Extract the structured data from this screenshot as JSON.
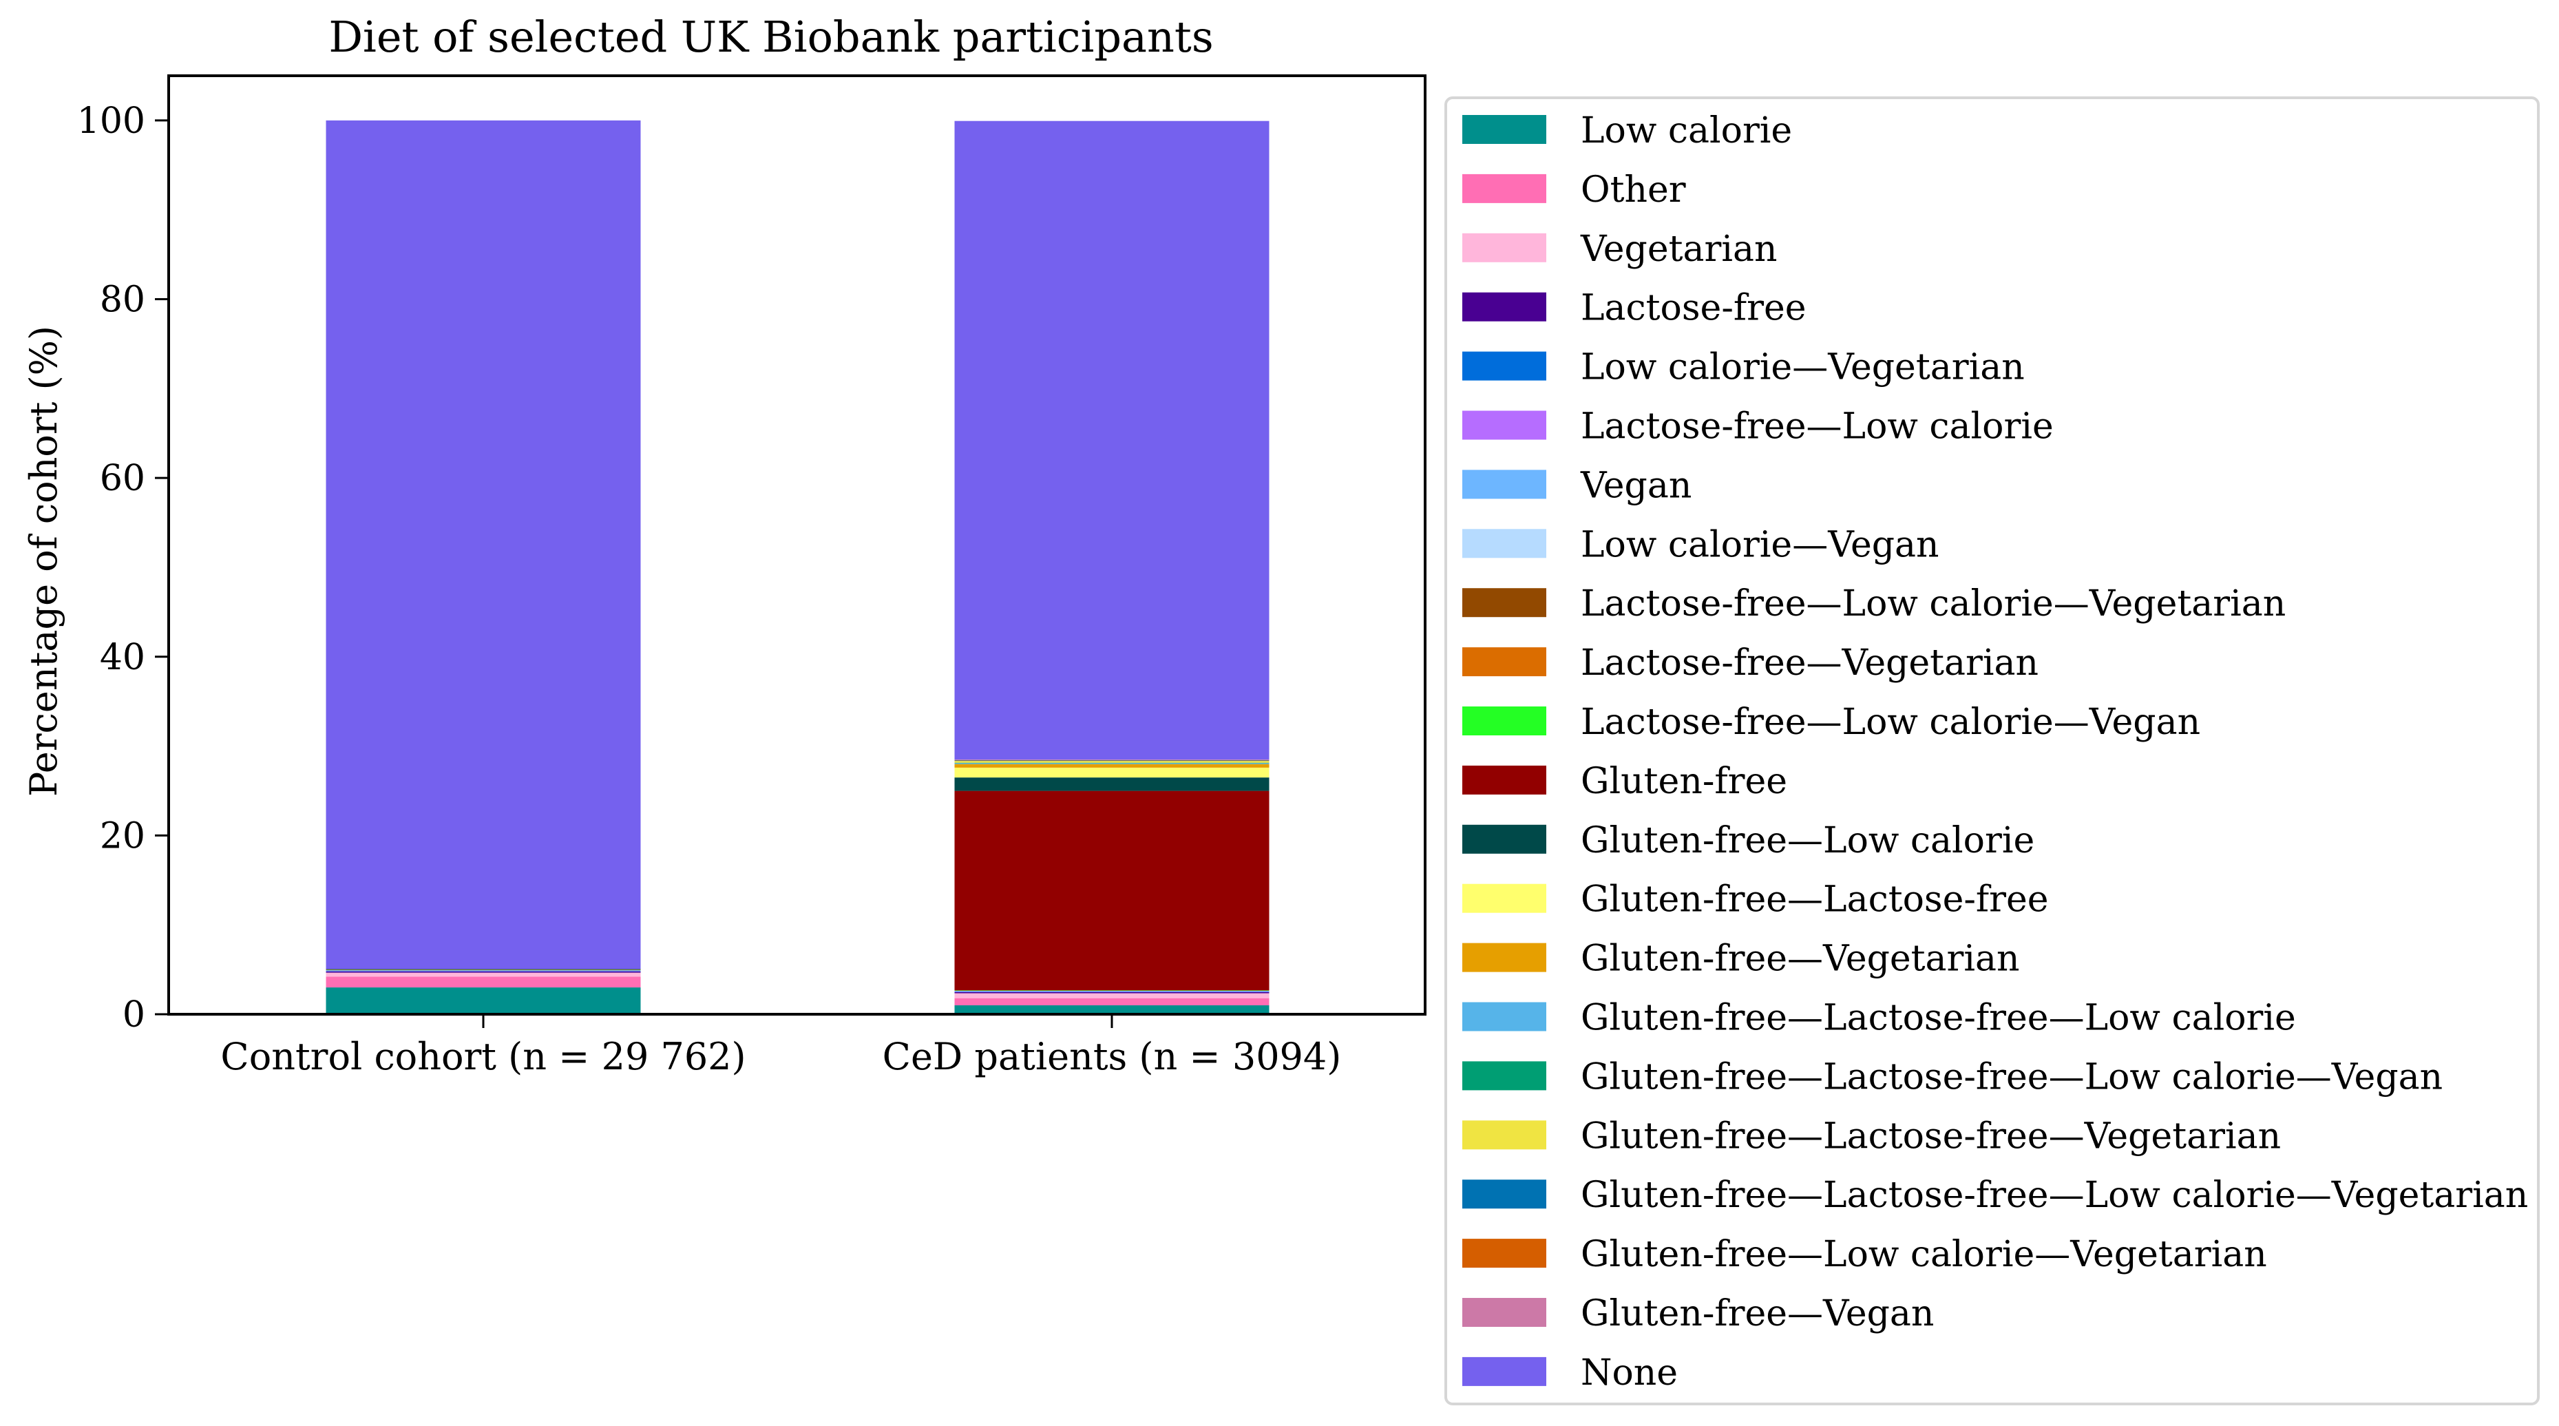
{
  "chart_data": {
    "type": "bar",
    "stacked": true,
    "title": "Diet of selected UK Biobank participants",
    "xlabel": "",
    "ylabel": "Percentage of cohort (%)",
    "ylim": [
      0,
      105
    ],
    "yticks": [
      0,
      20,
      40,
      60,
      80,
      100
    ],
    "grid": false,
    "legend_position": "right",
    "categories": [
      "Control cohort (n = 29 762)",
      "CeD patients (n = 3094)"
    ],
    "series": [
      {
        "name": "Low calorie",
        "color": "#008f8c",
        "values": [
          3.0,
          1.0
        ]
      },
      {
        "name": "Other",
        "color": "#ff6eb4",
        "values": [
          1.2,
          0.8
        ]
      },
      {
        "name": "Vegetarian",
        "color": "#ffb6db",
        "values": [
          0.45,
          0.55
        ]
      },
      {
        "name": "Lactose-free",
        "color": "#490092",
        "values": [
          0.12,
          0.12
        ]
      },
      {
        "name": "Low calorie—Vegetarian",
        "color": "#006ddb",
        "values": [
          0.05,
          0.05
        ]
      },
      {
        "name": "Lactose-free—Low calorie",
        "color": "#b66dff",
        "values": [
          0.03,
          0.03
        ]
      },
      {
        "name": "Vegan",
        "color": "#6db6ff",
        "values": [
          0.08,
          0.08
        ]
      },
      {
        "name": "Low calorie—Vegan",
        "color": "#b6dbff",
        "values": [
          0.02,
          0.02
        ]
      },
      {
        "name": "Lactose-free—Low calorie—Vegetarian",
        "color": "#924900",
        "values": [
          0.01,
          0.01
        ]
      },
      {
        "name": "Lactose-free—Vegetarian",
        "color": "#db6d00",
        "values": [
          0.02,
          0.02
        ]
      },
      {
        "name": "Lactose-free—Low calorie—Vegan",
        "color": "#24ff24",
        "values": [
          0.01,
          0.01
        ]
      },
      {
        "name": "Gluten-free",
        "color": "#920000",
        "values": [
          0.05,
          22.3
        ]
      },
      {
        "name": "Gluten-free—Low calorie",
        "color": "#004949",
        "values": [
          0.01,
          1.5
        ]
      },
      {
        "name": "Gluten-free—Lactose-free",
        "color": "#ffff6d",
        "values": [
          0.0,
          1.1
        ]
      },
      {
        "name": "Gluten-free—Vegetarian",
        "color": "#e69f00",
        "values": [
          0.0,
          0.4
        ]
      },
      {
        "name": "Gluten-free—Lactose-free—Low calorie",
        "color": "#56b4e9",
        "values": [
          0.0,
          0.1
        ]
      },
      {
        "name": "Gluten-free—Lactose-free—Low calorie—Vegan",
        "color": "#009e73",
        "values": [
          0.0,
          0.05
        ]
      },
      {
        "name": "Gluten-free—Lactose-free—Vegetarian",
        "color": "#f0e442",
        "values": [
          0.0,
          0.2
        ]
      },
      {
        "name": "Gluten-free—Lactose-free—Low calorie—Vegetarian",
        "color": "#0072b2",
        "values": [
          0.0,
          0.05
        ]
      },
      {
        "name": "Gluten-free—Low calorie—Vegetarian",
        "color": "#d55e00",
        "values": [
          0.0,
          0.05
        ]
      },
      {
        "name": "Gluten-free—Vegan",
        "color": "#cc79a7",
        "values": [
          0.0,
          0.05
        ]
      },
      {
        "name": "None",
        "color": "#7561ee",
        "values": [
          94.95,
          71.45
        ]
      }
    ]
  }
}
